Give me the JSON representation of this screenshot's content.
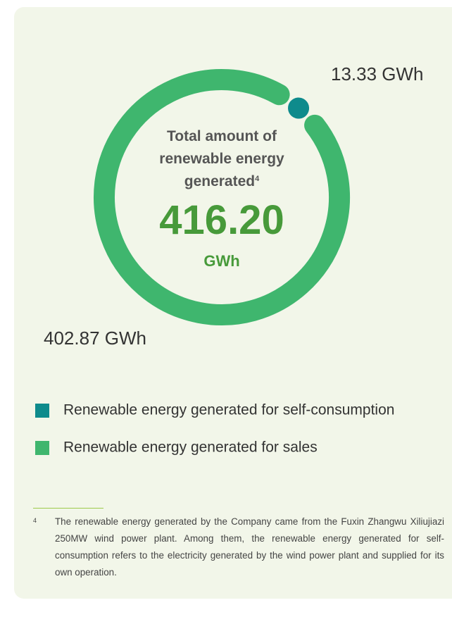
{
  "chart_data": {
    "type": "donut",
    "categories": [
      "Renewable energy generated for self-consumption",
      "Renewable energy generated for sales"
    ],
    "values": [
      13.33,
      402.87
    ],
    "value_labels": [
      "13.33 GWh",
      "402.87 GWh"
    ],
    "colors": [
      "#0e8b8c",
      "#3fb66e"
    ],
    "center_label": "Total amount of renewable energy generated",
    "center_label_note": "4",
    "center_value": "416.20",
    "center_unit": "GWh",
    "legend": true
  },
  "footnote": {
    "marker": "4",
    "text": "The renewable energy generated by the Company came from the Fuxin Zhangwu Xiliujiazi 250MW wind power plant. Among them, the renewable energy generated for self-consumption refers to the electricity generated by the wind power plant and supplied for its own operation."
  }
}
